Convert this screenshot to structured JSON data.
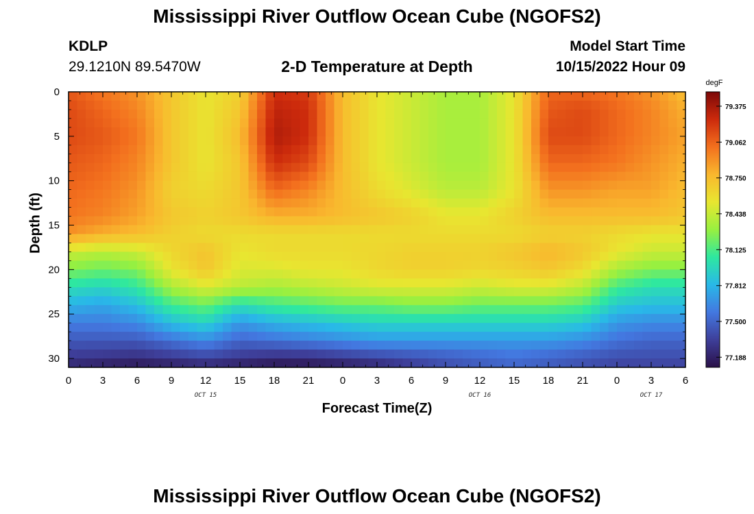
{
  "header": {
    "title": "Mississippi River Outflow Ocean Cube (NGOFS2)",
    "station": "KDLP",
    "coords": "29.1210N  89.5470W",
    "subtitle": "2-D Temperature at Depth",
    "model_start_label": "Model Start Time",
    "model_start_value": "10/15/2022 Hour 09"
  },
  "footer": {
    "title": "Mississippi River Outflow Ocean Cube (NGOFS2)"
  },
  "chart_data": {
    "type": "heatmap",
    "title": "2-D Temperature at Depth",
    "xlabel": "Forecast Time(Z)",
    "ylabel": "Depth (ft)",
    "x_tick_labels": [
      "0",
      "3",
      "6",
      "9",
      "12",
      "15",
      "18",
      "21",
      "0",
      "3",
      "6",
      "9",
      "12",
      "15",
      "18",
      "21",
      "0",
      "3",
      "6"
    ],
    "x_date_labels": [
      "OCT 15",
      "OCT 16",
      "OCT 17"
    ],
    "x_range_hours": [
      0,
      54
    ],
    "y_range_ft": [
      0,
      31
    ],
    "y_inverted": true,
    "y_ticks": [
      0,
      5,
      10,
      15,
      20,
      25,
      30
    ],
    "colorbar": {
      "unit": "degF",
      "min": 77.1,
      "max": 79.5,
      "ticks": [
        79.375,
        79.062,
        78.75,
        78.438,
        78.125,
        77.812,
        77.5,
        77.188
      ],
      "colors": [
        "#2a1048",
        "#3e3f9a",
        "#4378e0",
        "#29b8e8",
        "#2ee8a0",
        "#98f040",
        "#e8e630",
        "#f9b72e",
        "#f3701e",
        "#cc2a0c",
        "#7c0808"
      ]
    },
    "grid": false,
    "temperature_degF": {
      "x_hours": [
        0,
        3,
        6,
        9,
        12,
        15,
        18,
        21,
        24,
        27,
        30,
        33,
        36,
        39,
        42,
        45,
        48,
        51,
        54
      ],
      "depth_ft": [
        0,
        2,
        5,
        8,
        11,
        14,
        16,
        18,
        20,
        22,
        24,
        26,
        28,
        30,
        31
      ],
      "values": [
        [
          79.1,
          79.0,
          78.9,
          78.7,
          78.55,
          78.65,
          79.25,
          79.2,
          78.75,
          78.55,
          78.45,
          78.35,
          78.35,
          78.55,
          79.05,
          79.05,
          79.0,
          78.9,
          78.75
        ],
        [
          79.15,
          79.05,
          78.95,
          78.7,
          78.55,
          78.7,
          79.3,
          79.25,
          78.75,
          78.55,
          78.45,
          78.35,
          78.35,
          78.55,
          79.1,
          79.15,
          79.05,
          78.95,
          78.8
        ],
        [
          79.15,
          79.1,
          79.0,
          78.7,
          78.55,
          78.75,
          79.35,
          79.25,
          78.75,
          78.55,
          78.45,
          78.35,
          78.35,
          78.55,
          79.15,
          79.15,
          79.05,
          78.95,
          78.85
        ],
        [
          79.1,
          79.05,
          78.95,
          78.7,
          78.55,
          78.7,
          79.25,
          79.15,
          78.75,
          78.55,
          78.45,
          78.35,
          78.35,
          78.55,
          79.05,
          79.05,
          79.0,
          78.9,
          78.8
        ],
        [
          79.05,
          79.0,
          78.9,
          78.65,
          78.6,
          78.7,
          79.05,
          78.95,
          78.75,
          78.6,
          78.5,
          78.4,
          78.4,
          78.55,
          78.9,
          78.9,
          78.85,
          78.85,
          78.75
        ],
        [
          79.0,
          78.95,
          78.85,
          78.7,
          78.65,
          78.7,
          78.8,
          78.8,
          78.75,
          78.7,
          78.65,
          78.55,
          78.55,
          78.65,
          78.75,
          78.75,
          78.75,
          78.75,
          78.7
        ],
        [
          78.9,
          78.8,
          78.75,
          78.65,
          78.6,
          78.6,
          78.6,
          78.6,
          78.6,
          78.6,
          78.6,
          78.6,
          78.6,
          78.6,
          78.65,
          78.65,
          78.6,
          78.55,
          78.55
        ],
        [
          78.45,
          78.4,
          78.45,
          78.62,
          78.72,
          78.55,
          78.6,
          78.6,
          78.6,
          78.62,
          78.65,
          78.65,
          78.65,
          78.7,
          78.78,
          78.7,
          78.55,
          78.45,
          78.45
        ],
        [
          78.25,
          78.2,
          78.25,
          78.55,
          78.7,
          78.5,
          78.5,
          78.55,
          78.55,
          78.62,
          78.65,
          78.65,
          78.62,
          78.65,
          78.7,
          78.6,
          78.35,
          78.25,
          78.25
        ],
        [
          78.0,
          77.95,
          78.05,
          78.35,
          78.5,
          78.4,
          78.35,
          78.4,
          78.45,
          78.5,
          78.5,
          78.5,
          78.45,
          78.5,
          78.5,
          78.4,
          78.1,
          78.0,
          78.0
        ],
        [
          77.8,
          77.75,
          77.85,
          78.1,
          78.2,
          78.0,
          78.1,
          78.15,
          78.2,
          78.2,
          78.25,
          78.25,
          78.2,
          78.2,
          78.2,
          78.15,
          77.9,
          77.85,
          77.85
        ],
        [
          77.6,
          77.6,
          77.65,
          77.85,
          77.95,
          77.7,
          77.8,
          77.85,
          77.9,
          77.95,
          77.95,
          77.95,
          77.95,
          77.95,
          77.95,
          77.9,
          77.7,
          77.65,
          77.65
        ],
        [
          77.45,
          77.45,
          77.45,
          77.55,
          77.65,
          77.5,
          77.55,
          77.6,
          77.65,
          77.7,
          77.7,
          77.7,
          77.7,
          77.7,
          77.7,
          77.65,
          77.55,
          77.5,
          77.5
        ],
        [
          77.3,
          77.28,
          77.25,
          77.3,
          77.35,
          77.3,
          77.25,
          77.25,
          77.3,
          77.35,
          77.4,
          77.45,
          77.5,
          77.55,
          77.5,
          77.45,
          77.4,
          77.4,
          77.4
        ],
        [
          77.2,
          77.15,
          77.12,
          77.15,
          77.2,
          77.15,
          77.1,
          77.12,
          77.15,
          77.2,
          77.3,
          77.4,
          77.45,
          77.5,
          77.45,
          77.4,
          77.35,
          77.35,
          77.35
        ]
      ]
    }
  }
}
